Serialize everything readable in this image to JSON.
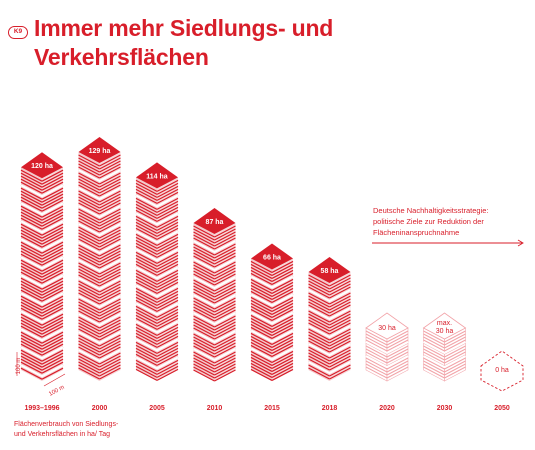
{
  "badge": "K9",
  "title_line1": "Immer mehr Siedlungs- und",
  "title_line2": "Verkehrsflächen",
  "strategy": {
    "line1": "Deutsche Nachhaltigkeitsstrategie:",
    "line2": "politische Ziele zur Reduktion der",
    "line3": "Flächeninanspruchnahme"
  },
  "footnote": {
    "line1": "Flächenverbrauch von Siedlungs-",
    "line2": "und Verkehrsflächen in ha/ Tag"
  },
  "scale": {
    "height_label": "100 m",
    "depth_label": "100 m"
  },
  "colors": {
    "accent": "#d81e2a",
    "background": "#ffffff"
  },
  "chart_data": {
    "type": "bar",
    "unit": "ha",
    "categories": [
      "1993–1996",
      "2000",
      "2005",
      "2010",
      "2015",
      "2018",
      "2020",
      "2030",
      "2050"
    ],
    "values": [
      120,
      129,
      114,
      87,
      66,
      58,
      30,
      30,
      0
    ],
    "value_labels": [
      "120 ha",
      "129 ha",
      "114 ha",
      "87 ha",
      "66 ha",
      "58 ha",
      "30 ha",
      "max. 30 ha",
      "0 ha"
    ],
    "kind": [
      "actual",
      "actual",
      "actual",
      "actual",
      "actual",
      "actual",
      "target",
      "target",
      "target"
    ]
  }
}
